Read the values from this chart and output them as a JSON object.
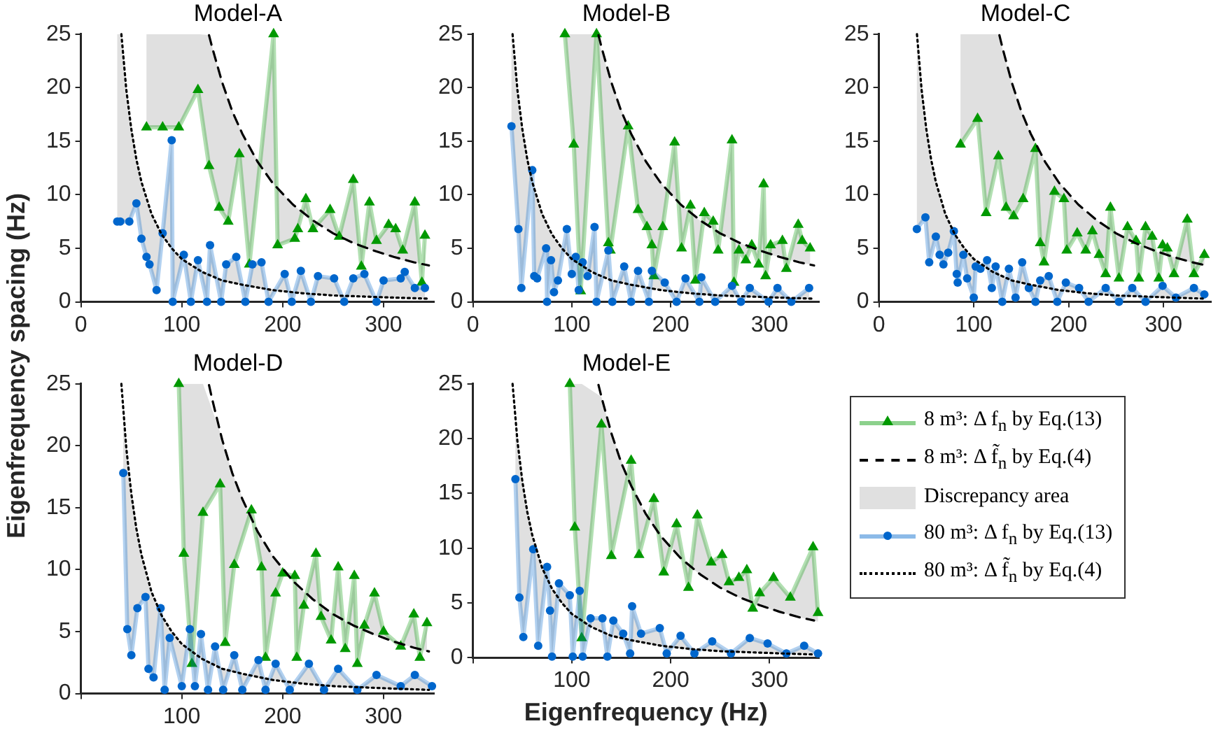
{
  "chart_data": [
    {
      "type": "line",
      "title": "Model-A",
      "ylabel": "Eigenfrequency spacing (Hz)",
      "legend": "bottom right",
      "xlim": [
        0,
        350
      ],
      "xticks": [
        0,
        100,
        200,
        300
      ],
      "ylim": [
        0,
        25
      ],
      "yticks": [
        0,
        5,
        10,
        15,
        20,
        25
      ],
      "series": [
        {
          "name": "8 m³: Δ f$_{n}$ by Eq.(13)",
          "type": "line",
          "color": "#009900",
          "marker": "triangle",
          "x": [
            65,
            81,
            97,
            116,
            127,
            137,
            146,
            157,
            167,
            191,
            195,
            212,
            215,
            223,
            230,
            247,
            256,
            270,
            278,
            286,
            293,
            305,
            312,
            319,
            331,
            338,
            341
          ],
          "values": [
            16.3,
            16.3,
            16.3,
            19.8,
            12.7,
            8.8,
            7.5,
            13.8,
            3.5,
            25,
            5.3,
            5.9,
            6.8,
            9.6,
            6.8,
            8.6,
            6.1,
            11.4,
            3.3,
            9.3,
            5.7,
            7.2,
            6.8,
            4.8,
            9.3,
            1.8,
            6.2
          ],
          "lower": [
            16.3,
            16.3,
            16.3,
            19.8,
            12.7,
            8.8,
            7.5,
            13.8,
            3.5,
            25,
            5.3,
            5.9,
            6.8,
            9.6,
            6.8,
            8.6,
            6.1,
            11.4,
            3.3,
            9.3,
            5.7,
            7.2,
            6.8,
            4.8,
            9.3,
            1.8,
            6.2
          ],
          "upper": [
            25,
            25,
            25,
            25,
            24.9,
            21.4,
            18.8,
            16.3,
            14.4,
            11.0,
            10.6,
            8.9,
            8.7,
            8.1,
            7.6,
            6.6,
            6.1,
            5.5,
            5.2,
            4.9,
            4.7,
            4.3,
            4.1,
            3.9,
            3.7,
            3.5,
            3.5
          ]
        },
        {
          "name": "8 m³: Δ f̃$_{n}$ by Eq.(4)",
          "type": "line",
          "color": "#000000",
          "line_style": "dashed",
          "x": [
            127,
            130,
            140,
            150,
            160,
            175,
            190,
            210,
            230,
            250,
            270,
            290,
            310,
            330,
            345
          ],
          "values": [
            24.9,
            23.8,
            20.5,
            17.8,
            15.7,
            13.1,
            11.1,
            9.1,
            7.6,
            6.4,
            5.5,
            4.8,
            4.2,
            3.7,
            3.4
          ]
        },
        {
          "name": "Discrepancy area",
          "type": "area",
          "color": "#e0e0e0"
        },
        {
          "name": "80 m³: Δ f$_{n}$ by Eq.(13)",
          "type": "line",
          "color": "#0066cc",
          "marker": "circle",
          "x": [
            36,
            39,
            48,
            55,
            60,
            65,
            68,
            75,
            81,
            90,
            91,
            102,
            109,
            116,
            125,
            128,
            139,
            144,
            154,
            163,
            170,
            179,
            186,
            202,
            209,
            218,
            228,
            235,
            251,
            261,
            270,
            281,
            293,
            300,
            317,
            321,
            331,
            341
          ],
          "values": [
            7.5,
            7.5,
            7.5,
            9.2,
            5.9,
            4.2,
            3.5,
            1.1,
            6.4,
            15.1,
            0,
            4.4,
            0,
            3.9,
            0,
            5.3,
            0,
            3.5,
            4.2,
            0,
            3.5,
            3.7,
            0,
            2.6,
            0,
            2.9,
            0,
            2.4,
            2.2,
            0,
            2.2,
            2.6,
            0,
            2.0,
            2.2,
            2.8,
            1.3,
            1.3
          ],
          "lower": [
            7.5,
            7.5,
            7.5,
            9.2,
            5.9,
            4.2,
            3.5,
            1.1,
            6.4,
            15.1,
            0,
            4.4,
            0,
            3.9,
            0,
            5.3,
            0,
            3.5,
            4.2,
            0,
            3.5,
            3.7,
            0,
            2.6,
            0,
            2.9,
            0,
            2.4,
            2.2,
            0,
            2.2,
            2.6,
            0,
            2.0,
            2.2,
            2.8,
            1.3,
            1.3
          ],
          "upper": [
            25,
            25,
            17.4,
            13.3,
            11.2,
            9.5,
            8.7,
            7.1,
            6.1,
            5.0,
            4.8,
            3.9,
            3.4,
            3.0,
            2.6,
            2.5,
            2.1,
            1.9,
            1.7,
            1.5,
            1.4,
            1.3,
            1.2,
            1.0,
            0.9,
            0.8,
            0.8,
            0.7,
            0.6,
            0.6,
            0.6,
            0.5,
            0.5,
            0.4,
            0.4,
            0.4,
            0.4,
            0.3
          ]
        },
        {
          "name": "80 m³: Δ f̃$_{n}$ by Eq.(4)",
          "type": "line",
          "color": "#000000",
          "line_style": "dotted",
          "x": [
            40.1,
            45,
            50,
            55,
            60,
            70,
            80,
            90,
            100,
            120,
            140,
            160,
            190,
            220,
            250,
            280,
            310,
            345
          ],
          "values": [
            25.0,
            19.8,
            16.1,
            13.3,
            11.2,
            8.2,
            6.3,
            5.0,
            4.0,
            2.8,
            2.0,
            1.6,
            1.1,
            0.8,
            0.6,
            0.5,
            0.4,
            0.3
          ]
        }
      ]
    },
    {
      "type": "line",
      "title": "Model-B",
      "xlim": [
        0,
        350
      ],
      "xticks": [
        0,
        100,
        200,
        300
      ],
      "ylim": [
        0,
        25
      ],
      "yticks": [
        0,
        5,
        10,
        15,
        20,
        25
      ],
      "series": [
        {
          "type": "line",
          "color": "#009900",
          "marker": "triangle",
          "x": [
            93,
            102,
            109,
            125,
            137,
            139,
            157,
            167,
            176,
            181,
            183,
            192,
            204,
            211,
            220,
            225,
            234,
            243,
            248,
            262,
            264,
            269,
            276,
            282,
            289,
            294,
            296,
            301,
            313,
            317,
            329,
            333,
            341
          ],
          "values": [
            25,
            14.7,
            1.0,
            25,
            5.5,
            4.8,
            16.4,
            8.6,
            7.0,
            5.3,
            2.4,
            7.0,
            14.9,
            5.0,
            9.0,
            2.0,
            8.3,
            7.5,
            4.8,
            15.1,
            1.8,
            4.8,
            3.9,
            5.3,
            3.5,
            11.0,
            2.4,
            5.3,
            5.7,
            3.1,
            7.2,
            5.7,
            5.0
          ],
          "lower": [
            25,
            14.7,
            1.0,
            25,
            5.5,
            4.8,
            16.4,
            8.6,
            7.0,
            5.3,
            2.4,
            7.0,
            14.9,
            5.0,
            9.0,
            2.0,
            8.3,
            7.5,
            4.8,
            15.1,
            1.8,
            4.8,
            3.9,
            5.3,
            3.5,
            11.0,
            2.4,
            5.3,
            5.7,
            3.1,
            7.2,
            5.7,
            5.0
          ],
          "upper": [
            25,
            25,
            25,
            25,
            21.4,
            20.8,
            16.3,
            14.4,
            13.0,
            12.3,
            12.0,
            10.9,
            9.6,
            9.0,
            8.3,
            7.9,
            7.3,
            6.8,
            6.5,
            5.8,
            5.8,
            5.5,
            5.3,
            5.0,
            4.8,
            4.6,
            4.6,
            4.4,
            4.1,
            4.0,
            3.7,
            3.6,
            3.5
          ]
        },
        {
          "type": "line",
          "color": "#000000",
          "line_style": "dashed",
          "x": [
            127,
            130,
            140,
            150,
            160,
            175,
            190,
            210,
            230,
            250,
            270,
            290,
            310,
            330,
            345
          ],
          "values": [
            24.9,
            23.8,
            20.5,
            17.8,
            15.7,
            13.1,
            11.1,
            9.1,
            7.6,
            6.4,
            5.5,
            4.8,
            4.2,
            3.7,
            3.4
          ]
        },
        {
          "type": "line",
          "color": "#0066cc",
          "marker": "circle",
          "x": [
            39,
            46,
            49,
            60,
            62,
            65,
            74,
            75,
            79,
            82,
            86,
            95,
            100,
            104,
            107,
            111,
            116,
            123,
            125,
            137,
            141,
            153,
            160,
            167,
            178,
            181,
            194,
            206,
            215,
            229,
            231,
            245,
            262,
            271,
            280,
            299,
            308,
            322,
            340
          ],
          "values": [
            16.4,
            6.8,
            1.3,
            12.3,
            2.4,
            2.2,
            5.0,
            0,
            3.9,
            0.9,
            2.0,
            6.8,
            2.6,
            4.2,
            1.1,
            3.7,
            2.4,
            7.0,
            0,
            4.8,
            0,
            3.3,
            0,
            2.9,
            0,
            2.9,
            1.8,
            0,
            2.2,
            0,
            2.3,
            0,
            1.5,
            0,
            1.3,
            0,
            1.3,
            0,
            1.3
          ],
          "lower": [
            16.4,
            6.8,
            1.3,
            12.3,
            2.4,
            2.2,
            5.0,
            0,
            3.9,
            0.9,
            2.0,
            6.8,
            2.6,
            4.2,
            1.1,
            3.7,
            2.4,
            7.0,
            0,
            4.8,
            0,
            3.3,
            0,
            2.9,
            0,
            2.9,
            1.8,
            0,
            2.2,
            0,
            2.3,
            0,
            1.5,
            0,
            1.3,
            0,
            1.3,
            0,
            1.3
          ],
          "upper": [
            25,
            19.0,
            16.7,
            11.2,
            10.4,
            9.5,
            7.3,
            7.1,
            6.4,
            6.0,
            5.4,
            4.4,
            4.0,
            3.7,
            3.5,
            3.3,
            3.0,
            2.7,
            2.6,
            2.1,
            2.0,
            1.7,
            1.6,
            1.4,
            1.3,
            1.2,
            1.1,
            0.9,
            0.9,
            0.8,
            0.8,
            0.7,
            0.6,
            0.5,
            0.5,
            0.4,
            0.4,
            0.4,
            0.3
          ]
        },
        {
          "type": "line",
          "color": "#000000",
          "line_style": "dotted",
          "x": [
            40.1,
            45,
            50,
            55,
            60,
            70,
            80,
            90,
            100,
            120,
            140,
            160,
            190,
            220,
            250,
            280,
            310,
            345
          ],
          "values": [
            25.0,
            19.8,
            16.1,
            13.3,
            11.2,
            8.2,
            6.3,
            5.0,
            4.0,
            2.8,
            2.0,
            1.6,
            1.1,
            0.8,
            0.6,
            0.5,
            0.4,
            0.3
          ]
        }
      ]
    },
    {
      "type": "line",
      "title": "Model-C",
      "xlim": [
        0,
        350
      ],
      "xticks": [
        0,
        100,
        200,
        300
      ],
      "ylim": [
        0,
        25
      ],
      "yticks": [
        0,
        5,
        10,
        15,
        20,
        25
      ],
      "series": [
        {
          "type": "line",
          "color": "#009900",
          "marker": "triangle",
          "x": [
            86,
            104,
            113,
            126,
            134,
            142,
            152,
            165,
            170,
            174,
            185,
            195,
            198,
            209,
            218,
            225,
            232,
            239,
            244,
            253,
            262,
            271,
            274,
            281,
            288,
            295,
            299,
            304,
            311,
            325,
            332,
            343
          ],
          "values": [
            14.7,
            17.1,
            8.3,
            13.6,
            8.8,
            8.0,
            9.6,
            14.3,
            5.5,
            3.7,
            10.3,
            9.6,
            4.8,
            6.4,
            4.8,
            6.6,
            4.4,
            2.6,
            8.8,
            2.2,
            7.0,
            5.7,
            2.2,
            7.0,
            6.1,
            2.2,
            5.3,
            5.0,
            2.6,
            7.7,
            2.6,
            4.4
          ],
          "lower": [
            14.7,
            17.1,
            8.3,
            13.6,
            8.8,
            8.0,
            9.6,
            14.3,
            5.5,
            3.7,
            10.3,
            9.6,
            4.8,
            6.4,
            4.8,
            6.6,
            4.4,
            2.6,
            8.8,
            2.2,
            7.0,
            5.7,
            2.2,
            7.0,
            6.1,
            2.2,
            5.3,
            5.0,
            2.6,
            7.7,
            2.6,
            4.4
          ],
          "upper": [
            25,
            25,
            25,
            25,
            22.4,
            19.9,
            17.4,
            14.7,
            13.9,
            13.3,
            11.7,
            10.6,
            10.2,
            9.2,
            8.4,
            7.9,
            7.5,
            7.0,
            6.7,
            6.3,
            5.8,
            5.5,
            5.3,
            5.1,
            4.8,
            4.6,
            4.5,
            4.3,
            4.2,
            3.8,
            3.6,
            3.4
          ]
        },
        {
          "type": "line",
          "color": "#000000",
          "line_style": "dashed",
          "x": [
            127,
            130,
            140,
            150,
            160,
            175,
            190,
            210,
            230,
            250,
            270,
            290,
            310,
            330,
            345
          ],
          "values": [
            24.9,
            23.8,
            20.5,
            17.8,
            15.7,
            13.1,
            11.1,
            9.1,
            7.6,
            6.4,
            5.5,
            4.8,
            4.2,
            3.7,
            3.4
          ]
        },
        {
          "type": "line",
          "color": "#0066cc",
          "marker": "circle",
          "x": [
            40,
            49,
            53,
            60,
            64,
            68,
            73,
            79,
            82,
            83,
            89,
            93,
            100,
            102,
            107,
            114,
            119,
            123,
            130,
            137,
            144,
            151,
            158,
            165,
            170,
            179,
            188,
            197,
            211,
            221,
            239,
            253,
            267,
            281,
            299,
            313,
            332,
            343
          ],
          "values": [
            6.8,
            7.9,
            3.7,
            6.1,
            4.4,
            3.5,
            4.6,
            6.6,
            2.6,
            1.8,
            4.4,
            2.2,
            0.4,
            3.3,
            3.1,
            3.9,
            1.3,
            3.3,
            0,
            3.1,
            0.4,
            3.7,
            1.3,
            0,
            2.0,
            2.4,
            0,
            1.8,
            1.3,
            0,
            1.3,
            0,
            1.3,
            0,
            1.5,
            0.4,
            1.3,
            0.7
          ],
          "lower": [
            6.8,
            7.9,
            3.7,
            6.1,
            4.4,
            3.5,
            4.6,
            6.6,
            2.6,
            1.8,
            4.4,
            2.2,
            0.4,
            3.3,
            3.1,
            3.9,
            1.3,
            3.3,
            0,
            3.1,
            0.4,
            3.7,
            1.3,
            0,
            2.0,
            2.4,
            0,
            1.8,
            1.3,
            0,
            1.3,
            0,
            1.3,
            0,
            1.5,
            0.4,
            1.3,
            0.7
          ],
          "upper": [
            25,
            16.7,
            14.3,
            11.2,
            9.8,
            8.7,
            7.5,
            6.4,
            6.0,
            5.8,
            5.1,
            4.6,
            4.0,
            3.9,
            3.5,
            3.1,
            2.8,
            2.7,
            2.4,
            2.1,
            1.9,
            1.8,
            1.6,
            1.5,
            1.4,
            1.3,
            1.1,
            1.0,
            0.9,
            0.8,
            0.7,
            0.6,
            0.6,
            0.5,
            0.4,
            0.4,
            0.4,
            0.3
          ]
        },
        {
          "type": "line",
          "color": "#000000",
          "line_style": "dotted",
          "x": [
            40.1,
            45,
            50,
            55,
            60,
            70,
            80,
            90,
            100,
            120,
            140,
            160,
            190,
            220,
            250,
            280,
            310,
            345
          ],
          "values": [
            25.0,
            19.8,
            16.1,
            13.3,
            11.2,
            8.2,
            6.3,
            5.0,
            4.0,
            2.8,
            2.0,
            1.6,
            1.1,
            0.8,
            0.6,
            0.5,
            0.4,
            0.3
          ]
        }
      ]
    },
    {
      "type": "line",
      "title": "Model-D",
      "xlim": [
        0,
        350
      ],
      "xticks": [
        {
          "value": 0,
          "label": null
        },
        100,
        200,
        300
      ],
      "ylim": [
        0,
        25
      ],
      "yticks": [
        0,
        5,
        10,
        15,
        20,
        25
      ],
      "series": [
        {
          "type": "line",
          "color": "#009900",
          "marker": "triangle",
          "x": [
            97,
            102,
            110,
            121,
            138,
            143,
            152,
            169,
            179,
            183,
            193,
            200,
            212,
            214,
            221,
            233,
            238,
            248,
            255,
            262,
            271,
            274,
            281,
            291,
            300,
            317,
            330,
            336,
            343
          ],
          "values": [
            25,
            11.3,
            2.4,
            14.6,
            16.9,
            4.1,
            10.4,
            14.8,
            10.2,
            2.9,
            8.1,
            9.7,
            9.5,
            2.9,
            7.1,
            11.3,
            6.2,
            4.3,
            10.2,
            3.6,
            9.5,
            2.4,
            5.5,
            8.1,
            5.0,
            3.8,
            6.4,
            2.9,
            5.7
          ],
          "lower": [
            25,
            11.3,
            2.4,
            14.6,
            16.9,
            4.1,
            10.4,
            14.8,
            10.2,
            2.9,
            8.1,
            9.7,
            9.5,
            2.9,
            7.1,
            11.3,
            6.2,
            4.3,
            10.2,
            3.6,
            9.5,
            2.4,
            5.5,
            8.1,
            5.0,
            3.8,
            6.4,
            2.9,
            5.7
          ],
          "upper": [
            25,
            25,
            25,
            25,
            21.1,
            19.6,
            17.4,
            14.1,
            12.5,
            12.0,
            10.8,
            10.0,
            8.9,
            8.8,
            8.2,
            7.4,
            7.1,
            6.5,
            6.2,
            5.8,
            5.5,
            5.3,
            5.1,
            4.7,
            4.5,
            4.0,
            3.7,
            3.6,
            3.4
          ]
        },
        {
          "type": "line",
          "color": "#000000",
          "line_style": "dashed",
          "x": [
            127,
            130,
            140,
            150,
            160,
            175,
            190,
            210,
            230,
            250,
            270,
            290,
            310,
            330,
            345
          ],
          "values": [
            24.9,
            23.8,
            20.5,
            17.8,
            15.7,
            13.1,
            11.1,
            9.1,
            7.6,
            6.4,
            5.5,
            4.8,
            4.2,
            3.7,
            3.4
          ]
        },
        {
          "type": "line",
          "color": "#0066cc",
          "marker": "circle",
          "x": [
            42,
            46,
            50,
            56,
            64,
            67,
            72,
            79,
            83,
            88,
            100,
            108,
            113,
            119,
            126,
            133,
            141,
            152,
            160,
            176,
            183,
            193,
            207,
            226,
            241,
            255,
            274,
            293,
            317,
            331,
            348
          ],
          "values": [
            17.8,
            5.2,
            3.1,
            6.9,
            7.8,
            2.0,
            1.3,
            6.9,
            0.3,
            4.5,
            0.6,
            5.2,
            0.6,
            4.8,
            0.3,
            3.8,
            0.3,
            3.1,
            0.3,
            2.7,
            0.3,
            2.4,
            0.3,
            2.4,
            0.3,
            2.0,
            0.3,
            1.5,
            0.6,
            1.5,
            0.6
          ],
          "lower": [
            17.8,
            5.2,
            3.1,
            6.9,
            7.8,
            2.0,
            1.3,
            6.9,
            0.3,
            4.5,
            0.6,
            5.2,
            0.6,
            4.8,
            0.3,
            3.8,
            0.3,
            3.1,
            0.3,
            2.7,
            0.3,
            2.4,
            0.3,
            2.4,
            0.3,
            2.0,
            0.3,
            1.5,
            0.6,
            1.5,
            0.6
          ],
          "upper": [
            22.8,
            19.0,
            16.1,
            12.8,
            9.8,
            8.9,
            7.7,
            6.4,
            5.8,
            5.2,
            4.0,
            3.4,
            3.1,
            2.8,
            2.5,
            2.3,
            2.0,
            1.7,
            1.6,
            1.3,
            1.2,
            1.1,
            0.9,
            0.8,
            0.7,
            0.6,
            0.5,
            0.5,
            0.4,
            0.4,
            0.3
          ]
        },
        {
          "type": "line",
          "color": "#000000",
          "line_style": "dotted",
          "x": [
            40.1,
            45,
            50,
            55,
            60,
            70,
            80,
            90,
            100,
            120,
            140,
            160,
            190,
            220,
            250,
            280,
            310,
            345
          ],
          "values": [
            25.0,
            19.8,
            16.1,
            13.3,
            11.2,
            8.2,
            6.3,
            5.0,
            4.0,
            2.8,
            2.0,
            1.6,
            1.1,
            0.8,
            0.6,
            0.5,
            0.4,
            0.3
          ]
        }
      ]
    },
    {
      "type": "line",
      "title": "Model-E",
      "xlabel": "Eigenfrequency (Hz)",
      "xlim": [
        0,
        350
      ],
      "xticks": [
        {
          "value": 0,
          "label": null
        },
        100,
        200,
        300
      ],
      "ylim": [
        0,
        25
      ],
      "yticks": [
        0,
        5,
        10,
        15,
        20,
        25
      ],
      "series": [
        {
          "type": "line",
          "color": "#009900",
          "marker": "triangle",
          "x": [
            98,
            103,
            110,
            130,
            140,
            160,
            168,
            183,
            193,
            206,
            218,
            227,
            241,
            252,
            259,
            269,
            277,
            283,
            290,
            304,
            321,
            344,
            349
          ],
          "values": [
            25,
            11.9,
            1.8,
            21.3,
            9.3,
            18.0,
            9.4,
            14.5,
            7.8,
            12.2,
            6.4,
            13.0,
            8.7,
            9.4,
            6.9,
            7.3,
            8.0,
            4.5,
            5.9,
            7.3,
            5.5,
            10.1,
            4.1
          ],
          "lower": [
            25,
            11.9,
            1.8,
            21.3,
            9.3,
            18.0,
            9.4,
            14.5,
            7.8,
            12.2,
            6.4,
            13.0,
            8.7,
            9.4,
            6.9,
            7.3,
            8.0,
            4.5,
            5.9,
            7.3,
            5.5,
            10.1,
            4.1
          ],
          "upper": [
            25,
            25,
            25,
            23.8,
            20.5,
            15.7,
            14.2,
            12.0,
            10.8,
            9.5,
            8.4,
            7.8,
            6.9,
            6.3,
            6.0,
            5.5,
            5.2,
            5.0,
            4.8,
            4.3,
            3.9,
            3.4,
            3.3
          ]
        },
        {
          "type": "line",
          "color": "#000000",
          "line_style": "dashed",
          "x": [
            127,
            130,
            140,
            150,
            160,
            175,
            190,
            210,
            230,
            250,
            270,
            290,
            310,
            330,
            345
          ],
          "values": [
            24.9,
            23.8,
            20.5,
            17.8,
            15.7,
            13.1,
            11.1,
            9.1,
            7.6,
            6.4,
            5.5,
            4.8,
            4.2,
            3.7,
            3.4
          ]
        },
        {
          "type": "line",
          "color": "#0066cc",
          "marker": "circle",
          "x": [
            43,
            47,
            51,
            61,
            66,
            75,
            78,
            80,
            87,
            98,
            101,
            108,
            111,
            119,
            131,
            136,
            142,
            152,
            159,
            161,
            170,
            189,
            196,
            210,
            224,
            242,
            261,
            280,
            298,
            317,
            335,
            349
          ],
          "values": [
            16.3,
            5.5,
            1.9,
            9.9,
            1.1,
            8.3,
            4.3,
            0.1,
            6.8,
            5.7,
            0.1,
            6.1,
            0.1,
            3.6,
            3.6,
            0.1,
            3.4,
            2.2,
            0.4,
            4.7,
            2.2,
            2.7,
            0.4,
            2.0,
            0.4,
            1.5,
            0.4,
            1.8,
            1.3,
            0.4,
            1.1,
            0.4
          ],
          "lower": [
            16.3,
            5.5,
            1.9,
            9.9,
            1.1,
            8.3,
            4.3,
            0.1,
            6.8,
            5.7,
            0.1,
            6.1,
            0.1,
            3.6,
            3.6,
            0.1,
            3.4,
            2.2,
            0.4,
            4.7,
            2.2,
            2.7,
            0.4,
            2.0,
            0.4,
            1.5,
            0.4,
            1.8,
            1.3,
            0.4,
            1.1,
            0.4
          ],
          "upper": [
            21.7,
            18.2,
            15.4,
            10.8,
            9.2,
            7.1,
            6.6,
            6.3,
            5.3,
            4.2,
            3.9,
            3.4,
            3.3,
            2.8,
            2.3,
            2.2,
            2.0,
            1.7,
            1.6,
            1.5,
            1.4,
            1.1,
            1.0,
            0.9,
            0.8,
            0.7,
            0.6,
            0.5,
            0.5,
            0.4,
            0.4,
            0.3
          ]
        },
        {
          "type": "line",
          "color": "#000000",
          "line_style": "dotted",
          "x": [
            40.1,
            45,
            50,
            55,
            60,
            70,
            80,
            90,
            100,
            120,
            140,
            160,
            190,
            220,
            250,
            280,
            310,
            345
          ],
          "values": [
            25.0,
            19.8,
            16.1,
            13.3,
            11.2,
            8.2,
            6.3,
            5.0,
            4.0,
            2.8,
            2.0,
            1.6,
            1.1,
            0.8,
            0.6,
            0.5,
            0.4,
            0.3
          ]
        }
      ]
    }
  ]
}
